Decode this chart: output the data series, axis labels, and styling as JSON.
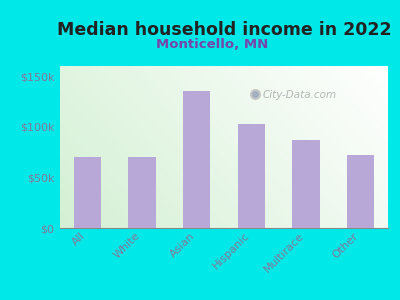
{
  "title": "Median household income in 2022",
  "subtitle": "Monticello, MN",
  "categories": [
    "All",
    "White",
    "Asian",
    "Hispanic",
    "Multirace",
    "Other"
  ],
  "values": [
    70000,
    70000,
    135000,
    103000,
    87000,
    72000
  ],
  "bar_color": "#b8a8d8",
  "background_outer": "#00e8e8",
  "title_color": "#222222",
  "subtitle_color": "#7744aa",
  "tick_color": "#887799",
  "ylabel_ticks": [
    "$0",
    "$50k",
    "$100k",
    "$150k"
  ],
  "ylim": [
    0,
    160000
  ],
  "yticks": [
    0,
    50000,
    100000,
    150000
  ],
  "watermark": "City-Data.com",
  "title_fontsize": 12.5,
  "subtitle_fontsize": 9.5
}
